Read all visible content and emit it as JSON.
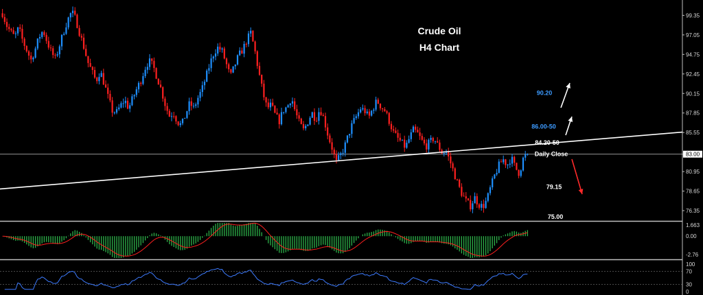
{
  "chart_data": [
    {
      "type": "candlestick",
      "title": "Crude Oil",
      "subtitle": "H4 Chart",
      "y_ticks": [
        "99.35",
        "97.05",
        "94.75",
        "92.45",
        "90.15",
        "87.85",
        "85.55",
        "83.00",
        "80.95",
        "78.65",
        "76.35"
      ],
      "ylim": [
        75.3,
        101.0
      ],
      "current_price": "83.00",
      "close_series": [
        99.6,
        98.2,
        97.4,
        96.8,
        97.9,
        96.3,
        95.2,
        94.1,
        95.3,
        96.8,
        97.6,
        96.2,
        95.0,
        94.2,
        95.8,
        97.4,
        98.8,
        99.8,
        98.9,
        97.2,
        95.6,
        93.8,
        92.7,
        91.6,
        92.8,
        91.3,
        89.6,
        88.1,
        87.9,
        88.7,
        89.4,
        88.4,
        89.6,
        90.7,
        91.7,
        93.1,
        94.0,
        93.4,
        92.0,
        90.6,
        88.8,
        87.5,
        87.9,
        86.8,
        86.4,
        87.7,
        89.0,
        88.4,
        89.6,
        90.6,
        92.1,
        93.7,
        95.0,
        95.6,
        95.1,
        93.6,
        92.1,
        93.4,
        94.6,
        95.3,
        96.4,
        97.3,
        95.2,
        92.6,
        90.2,
        88.4,
        88.8,
        87.6,
        86.9,
        88.2,
        88.6,
        89.7,
        87.9,
        86.6,
        85.8,
        86.8,
        87.9,
        87.1,
        88.4,
        87.1,
        85.2,
        83.7,
        82.0,
        82.8,
        83.8,
        85.3,
        86.6,
        87.5,
        88.4,
        88.1,
        87.3,
        88.4,
        89.3,
        88.6,
        88.1,
        86.9,
        85.6,
        84.9,
        84.4,
        83.8,
        84.9,
        85.9,
        85.4,
        84.6,
        83.9,
        84.4,
        84.9,
        84.0,
        83.2,
        83.3,
        82.1,
        80.7,
        79.3,
        78.2,
        77.4,
        76.9,
        77.9,
        77.1,
        76.8,
        77.6,
        79.2,
        80.6,
        81.7,
        82.4,
        81.7,
        82.6,
        81.4,
        80.7,
        82.6,
        83.0
      ],
      "levels": [
        {
          "label": "90.20",
          "value": 90.2,
          "color": "#3d9bff"
        },
        {
          "label": "86.00-50",
          "value": 86.25,
          "color": "#3d9bff"
        },
        {
          "label": "84.20-50",
          "value": 84.35,
          "color": "#ffffff"
        },
        {
          "label": "Daily Close",
          "value": 83.0,
          "color": "#ffffff"
        },
        {
          "label": "79.15",
          "value": 79.15,
          "color": "#ffffff"
        },
        {
          "label": "75.00",
          "value": 75.0,
          "color": "#ffffff"
        }
      ],
      "trendline": {
        "from": 78.9,
        "to": 85.6
      },
      "colors": {
        "bull": "#1e90ff",
        "bear": "#ff2020",
        "up_arrow": "#ffffff",
        "down_arrow": "#ff2a2a"
      }
    },
    {
      "type": "histogram",
      "name": "MACD",
      "y_ticks": [
        "1.663",
        "0.00",
        "-2.76"
      ],
      "ylim": [
        -3.3,
        2.0
      ],
      "colors": {
        "bar": "#2db34a",
        "signal": "#ff2020"
      }
    },
    {
      "type": "line",
      "name": "RSI",
      "y_ticks": [
        "100",
        "70",
        "30",
        "0"
      ],
      "ylim": [
        0,
        100
      ],
      "colors": {
        "line": "#3d7bff",
        "levels": "#777777"
      }
    }
  ]
}
